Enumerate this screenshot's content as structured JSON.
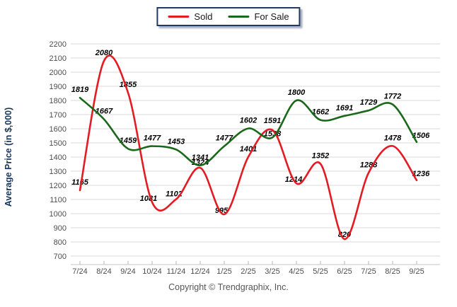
{
  "legend": {
    "border_color": "#1f3a63",
    "items": [
      {
        "label": "Sold",
        "color": "#e31b23"
      },
      {
        "label": "For Sale",
        "color": "#1a691a"
      }
    ]
  },
  "chart_data": {
    "type": "line",
    "title": "",
    "xlabel": "",
    "ylabel": "Average Price (in $,000)",
    "ylim": [
      700,
      2200
    ],
    "ytick_step": 100,
    "yticks": [
      700,
      800,
      900,
      1000,
      1100,
      1200,
      1300,
      1400,
      1500,
      1600,
      1700,
      1800,
      1900,
      2000,
      2100,
      2200
    ],
    "grid": true,
    "legend_position": "top-center",
    "categories": [
      "7/24",
      "8/24",
      "9/24",
      "10/24",
      "11/24",
      "12/24",
      "1/25",
      "2/25",
      "3/25",
      "4/25",
      "5/25",
      "6/25",
      "7/25",
      "8/25",
      "9/25"
    ],
    "series": [
      {
        "name": "Sold",
        "color": "#e31b23",
        "values": [
          1165,
          2080,
          1855,
          1081,
          1102,
          1324,
          995,
          1401,
          1591,
          1214,
          1352,
          820,
          1288,
          1478,
          1236
        ]
      },
      {
        "name": "For Sale",
        "color": "#1a691a",
        "values": [
          1819,
          1667,
          1459,
          1477,
          1453,
          1341,
          1477,
          1602,
          1538,
          1800,
          1662,
          1691,
          1729,
          1772,
          1506
        ]
      }
    ]
  },
  "colors": {
    "grid": "#d9d9d9",
    "axis_line": "#c6c6c6",
    "tick": "#b5b5b5",
    "tick_label": "#4d4d4d",
    "data_label": "#000000",
    "axis_title": "#17375e"
  },
  "footer": {
    "copyright": "Copyright © Trendgraphix, Inc."
  }
}
